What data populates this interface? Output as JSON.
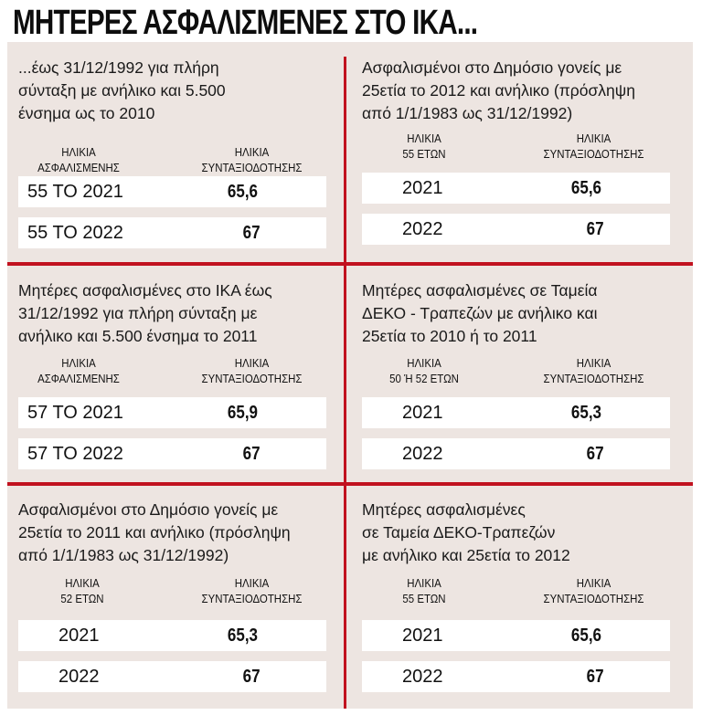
{
  "title": "ΜΗΤΕΡΕΣ ΑΣΦΑΛΙΣΜΕΝΕΣ ΣΤΟ ΙΚΑ...",
  "panels": [
    {
      "description": "...έως 31/12/1992 για πλήρη\nσύνταξη με ανήλικο και 5.500\nένσημα ως το 2010",
      "col1": "ΗΛΙΚΙΑ\nΑΣΦΑΛΙΣΜΕΝΗΣ",
      "col2": "ΗΛΙΚΙΑ\nΣΥΝΤΑΞΙΟΔΟΤΗΣΗΣ",
      "rows": [
        {
          "age": "55 ΤΟ 2021",
          "value": "65,6"
        },
        {
          "age": "55 ΤΟ 2022",
          "value": "67"
        }
      ]
    },
    {
      "description": "Ασφαλισμένοι στο Δημόσιο γονείς με\n25ετία το 2012 και ανήλικο (πρόσληψη\nαπό 1/1/1983 ως 31/12/1992)",
      "col1": "ΗΛΙΚΙΑ\n55 ΕΤΩΝ",
      "col2": "ΗΛΙΚΙΑ\nΣΥΝΤΑΞΙΟΔΟΤΗΣΗΣ",
      "rows": [
        {
          "age": "2021",
          "value": "65,6"
        },
        {
          "age": "2022",
          "value": "67"
        }
      ]
    },
    {
      "description": "Μητέρες ασφαλισμένες στο ΙΚΑ έως\n31/12/1992 για πλήρη σύνταξη με\nανήλικο και 5.500 ένσημα το 2011",
      "col1": "ΗΛΙΚΙΑ\nΑΣΦΑΛΙΣΜΕΝΗΣ",
      "col2": "ΗΛΙΚΙΑ\nΣΥΝΤΑΞΙΟΔΟΤΗΣΗΣ",
      "rows": [
        {
          "age": "57 ΤΟ 2021",
          "value": "65,9"
        },
        {
          "age": "57 ΤΟ 2022",
          "value": "67"
        }
      ]
    },
    {
      "description": "Μητέρες ασφαλισμένες σε Ταμεία\nΔΕΚΟ -  Τραπεζών με ανήλικο και\n25ετία το 2010 ή το 2011",
      "col1": "ΗΛΙΚΙΑ\n50 Ή 52 ΕΤΩΝ",
      "col2": "ΗΛΙΚΙΑ\nΣΥΝΤΑΞΙΟΔΟΤΗΣΗΣ",
      "rows": [
        {
          "age": "2021",
          "value": "65,3"
        },
        {
          "age": "2022",
          "value": "67"
        }
      ]
    },
    {
      "description": "Ασφαλισμένοι στο Δημόσιο γονείς με\n25ετία το 2011 και ανήλικο (πρόσληψη\nαπό 1/1/1983 ως 31/12/1992)",
      "col1": "ΗΛΙΚΙΑ\n52 ΕΤΩΝ",
      "col2": "ΗΛΙΚΙΑ\nΣΥΝΤΑΞΙΟΔΟΤΗΣΗΣ",
      "rows": [
        {
          "age": "2021",
          "value": "65,3"
        },
        {
          "age": "2022",
          "value": "67"
        }
      ]
    },
    {
      "description": "Μητέρες ασφαλισμένες\nσε Ταμεία ΔΕΚΟ-Τραπεζών\nμε ανήλικο και 25ετία το 2012",
      "col1": "ΗΛΙΚΙΑ\n55 ΕΤΩΝ",
      "col2": "ΗΛΙΚΙΑ\nΣΥΝΤΑΞΙΟΔΟΤΗΣΗΣ",
      "rows": [
        {
          "age": "2021",
          "value": "65,6"
        },
        {
          "age": "2022",
          "value": "67"
        }
      ]
    }
  ],
  "colors": {
    "background": "#ede5e1",
    "divider": "#c1121f",
    "row": "#ffffff"
  }
}
